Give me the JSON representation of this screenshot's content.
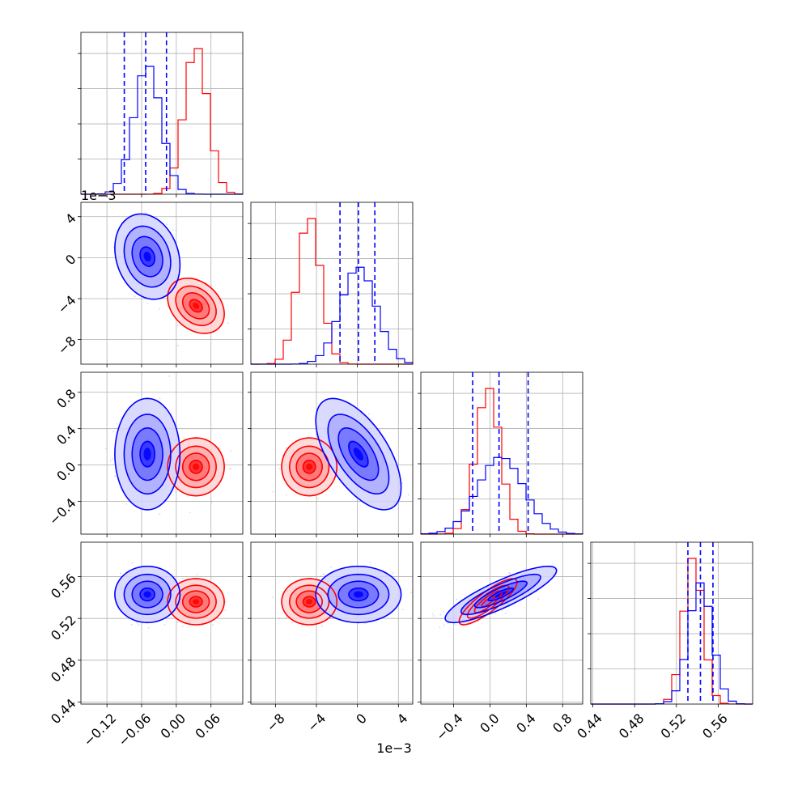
{
  "chart_data": {
    "type": "corner",
    "title": "",
    "offset_texts": {
      "x_param2": "1e−3",
      "y_param2": "1e−3"
    },
    "series": [
      {
        "name": "",
        "color": "#ff0000",
        "means": [
          0.034,
          -0.0047,
          -0.02,
          0.536
        ],
        "stds": [
          0.02,
          0.0011,
          0.13,
          0.009
        ],
        "corr": [
          [
            1,
            -0.3,
            0,
            0
          ],
          [
            -0.3,
            1,
            0,
            0
          ],
          [
            0,
            0,
            1,
            0.85
          ],
          [
            0,
            0,
            0.85,
            1
          ]
        ]
      },
      {
        "name": "",
        "color": "#0000ff",
        "means": [
          -0.05,
          0.0001,
          0.12,
          0.543
        ],
        "stds": [
          0.023,
          0.0017,
          0.25,
          0.011
        ],
        "corr": [
          [
            1,
            -0.2,
            0,
            0
          ],
          [
            -0.2,
            1,
            -0.6,
            0
          ],
          [
            0,
            -0.6,
            1,
            0.85
          ],
          [
            0,
            0,
            0.85,
            1
          ]
        ]
      }
    ],
    "quantile_lines": [
      [
        -0.09,
        -0.053,
        -0.017
      ],
      [
        -0.0017,
        0.0001,
        0.0017
      ],
      [
        -0.19,
        0.1,
        0.42
      ],
      [
        0.531,
        0.543,
        0.555
      ]
    ],
    "params": [
      {
        "range": [
          -0.165,
          0.115
        ],
        "ticks": [
          -0.12,
          -0.06,
          0.0,
          0.06
        ],
        "tick_labels": [
          "−0.12",
          "−0.06",
          "0.00",
          "0.06"
        ]
      },
      {
        "range": [
          -0.0104,
          0.0054
        ],
        "ticks": [
          -0.008,
          -0.004,
          0,
          0.004
        ],
        "tick_labels": [
          "−8",
          "−4",
          "0",
          "4"
        ]
      },
      {
        "range": [
          -0.76,
          1.02
        ],
        "ticks": [
          -0.4,
          0.0,
          0.4,
          0.8
        ],
        "tick_labels": [
          "−0.4",
          "0.0",
          "0.4",
          "0.8"
        ]
      },
      {
        "range": [
          0.438,
          0.593
        ],
        "ticks": [
          0.44,
          0.48,
          0.52,
          0.56
        ],
        "tick_labels": [
          "0.44",
          "0.48",
          "0.52",
          "0.56"
        ]
      }
    ],
    "grid": true
  }
}
